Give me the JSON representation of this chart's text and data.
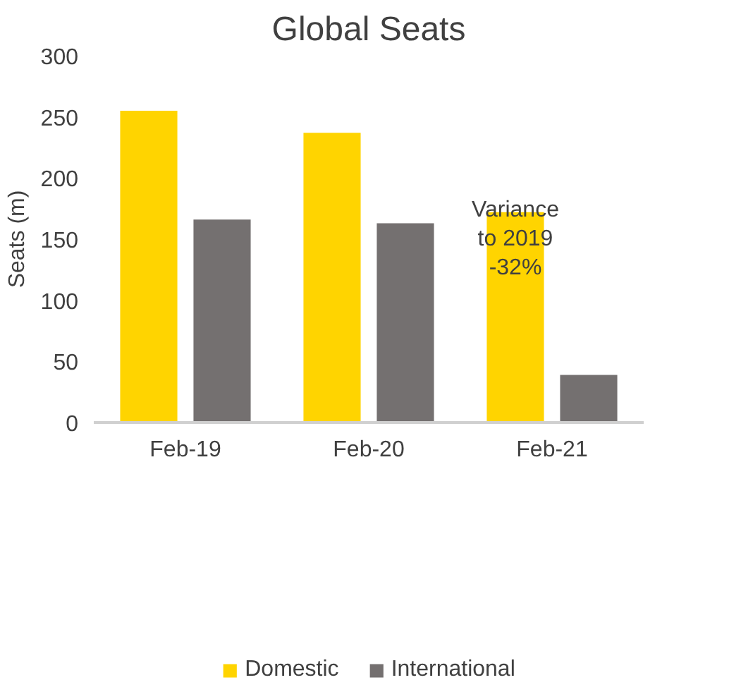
{
  "chart_data": {
    "type": "bar",
    "title": "Global Seats",
    "ylabel": "Seats (m)",
    "categories": [
      "Feb-19",
      "Feb-20",
      "Feb-21"
    ],
    "series": [
      {
        "name": "Domestic",
        "color": "#ffd400",
        "values": [
          255,
          237,
          172
        ]
      },
      {
        "name": "International",
        "color": "#747070",
        "values": [
          166,
          163,
          39
        ]
      }
    ],
    "ylim": [
      0,
      300
    ],
    "yticks": [
      0,
      50,
      100,
      150,
      200,
      250,
      300
    ],
    "grid": false,
    "legend": "bottom",
    "annotations": [
      "Variance\nto 2019\n-32%"
    ]
  }
}
